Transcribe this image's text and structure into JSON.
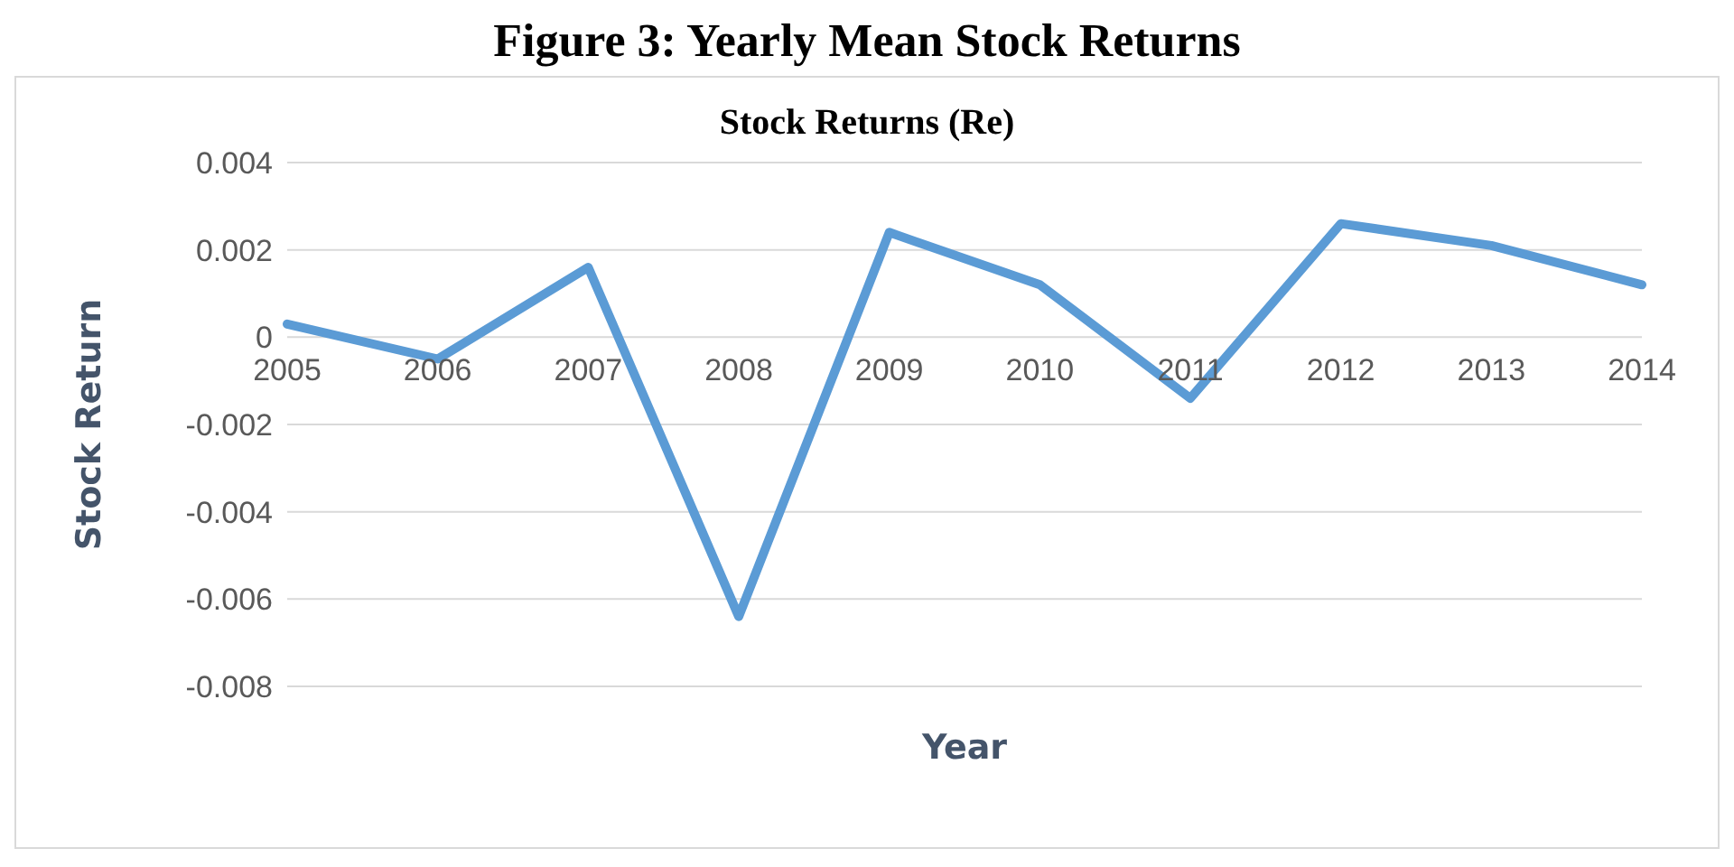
{
  "chart_data": {
    "type": "line",
    "title": "Figure 3: Yearly Mean Stock Returns",
    "subtitle": "Stock Returns (Re)",
    "xlabel": "Year",
    "ylabel": "Stock Return",
    "categories": [
      "2005",
      "2006",
      "2007",
      "2008",
      "2009",
      "2010",
      "2011",
      "2012",
      "2013",
      "2014"
    ],
    "series": [
      {
        "color": "#5b9bd5",
        "values": [
          0.0003,
          -0.0005,
          0.0016,
          -0.0064,
          0.0024,
          0.0012,
          -0.0014,
          0.0026,
          0.0021,
          0.0012
        ]
      }
    ],
    "ylim": [
      -0.008,
      0.004
    ],
    "yticks": [
      -0.008,
      -0.006,
      -0.004,
      -0.002,
      0,
      0.002,
      0.004
    ],
    "grid": "y",
    "legend": false,
    "marker": "none",
    "line_style": "solid"
  }
}
